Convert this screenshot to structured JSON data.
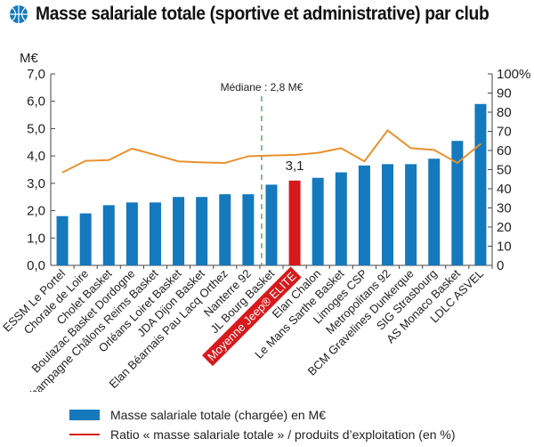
{
  "chart_data": {
    "type": "bar",
    "title": "Masse salariale totale (sportive et administrative) par club",
    "ylabel": "M€",
    "ylabel_right": "%",
    "ylim": [
      0,
      7
    ],
    "ylim_right": [
      0,
      100
    ],
    "yticks": [
      "0,0",
      "1,0",
      "2,0",
      "3,0",
      "4,0",
      "5,0",
      "6,0",
      "7,0"
    ],
    "yticks_right": [
      "0",
      "10",
      "20",
      "30",
      "40",
      "50",
      "60",
      "70",
      "80",
      "90",
      "100%"
    ],
    "categories": [
      "ESSM Le Portel",
      "Chorale de Loire",
      "Cholet Basket",
      "Boulazac Basket Dordogne",
      "Champagne Châlons Reims Basket",
      "Orléans Loiret Basket",
      "JDA Dijon Basket",
      "Elan Béarnais Pau Lacq Orthez",
      "Nanterre 92",
      "JL Bourg Basket",
      "Moyenne Jeep® ELITE",
      "Elan Chalon",
      "Le Mans Sarthe Basket",
      "Limoges CSP",
      "Metropolitans 92",
      "BCM Gravelines Dunkerque",
      "SIG Strasbourg",
      "AS Monaco Basket",
      "LDLC ASVEL"
    ],
    "highlight_index": 10,
    "highlight_label": "3,1",
    "series": [
      {
        "name": "Masse salariale totale (chargée) en M€",
        "axis": "left",
        "kind": "bar",
        "color": "#1479bd",
        "values": [
          1.8,
          1.9,
          2.2,
          2.3,
          2.3,
          2.5,
          2.5,
          2.6,
          2.6,
          2.95,
          3.1,
          3.2,
          3.4,
          3.65,
          3.7,
          3.7,
          3.9,
          4.55,
          5.9
        ]
      },
      {
        "name": "Ratio « masse salariale totale » / produits d’exploitation (en %)",
        "axis": "right",
        "kind": "line",
        "color": "#e8912e",
        "values": [
          48.5,
          54.6,
          55,
          61,
          57.7,
          54.3,
          53.8,
          53.5,
          57,
          57.4,
          57.7,
          58.8,
          61.2,
          54.3,
          70.5,
          61.2,
          60.3,
          53.5,
          63.4
        ]
      }
    ],
    "median": {
      "value": 2.8,
      "label": "Médiane : 2,8 M€",
      "color": "#3aa64a"
    },
    "highlight_color": "#d7191c",
    "legend_line_color": "#d7191c",
    "legend_placement": "bottom"
  }
}
